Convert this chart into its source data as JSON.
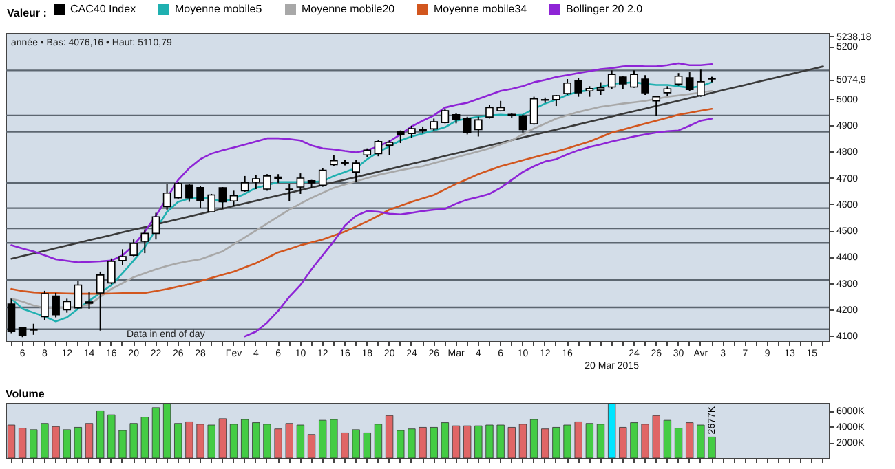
{
  "chart_data": [
    {
      "type": "candlestick",
      "legend_title": "Valeur :",
      "legend": "top",
      "marker": "none",
      "line_style": "solid",
      "grid": false,
      "annotations": [
        "année • Bas: 4076,16 • Haut: 5110,79",
        "Data in end of day"
      ],
      "categories": [
        null,
        "6",
        null,
        "8",
        null,
        "12",
        null,
        "14",
        null,
        "16",
        null,
        "20",
        null,
        "22",
        null,
        "26",
        null,
        "28",
        null,
        null,
        "Fev",
        null,
        "4",
        null,
        "6",
        null,
        "10",
        null,
        "12",
        null,
        "16",
        null,
        "18",
        null,
        "20",
        null,
        "24",
        null,
        "26",
        null,
        "Mar",
        null,
        "4",
        null,
        "6",
        null,
        "10",
        null,
        "12",
        null,
        "16",
        null,
        null,
        null,
        "20 Mar 2015",
        null,
        "24",
        null,
        "26",
        null,
        "30",
        null,
        "Avr",
        null,
        "3",
        null,
        "7",
        null,
        "9",
        null,
        "13",
        null,
        "15",
        null
      ],
      "ylim": [
        4080,
        5250
      ],
      "yticks": [
        4100,
        4200,
        4300,
        4400,
        4500,
        4600,
        4700,
        4800,
        4900,
        5000,
        {
          "value": 5074.9,
          "label": "5074,9"
        },
        5200,
        {
          "value": 5238.18,
          "label": "5238,18"
        }
      ],
      "ref_lines": [
        {
          "axis": "y",
          "value": 5108,
          "color": "#5c6670"
        },
        {
          "axis": "y",
          "value": 4937,
          "color": "#5c6670"
        },
        {
          "axis": "y",
          "value": 4875,
          "color": "#5c6670"
        },
        {
          "axis": "y",
          "value": 4681,
          "color": "#5c6670"
        },
        {
          "axis": "y",
          "value": 4585,
          "color": "#5c6670"
        },
        {
          "axis": "y",
          "value": 4508,
          "color": "#5c6670"
        },
        {
          "axis": "y",
          "value": 4453,
          "color": "#5c6670"
        },
        {
          "axis": "y",
          "value": 4313,
          "color": "#5c6670"
        },
        {
          "axis": "y",
          "value": 4208,
          "color": "#5c6670"
        },
        {
          "axis": "y",
          "value": 4125,
          "color": "#5c6670"
        }
      ],
      "series": [
        {
          "type": "candlestick",
          "name": "CAC40 Index",
          "color": "#000000",
          "ohlc": [
            [
              4221,
              4241,
              4110,
              4116
            ],
            [
              4131,
              4131,
              4095,
              4102
            ],
            [
              4122,
              4146,
              4104,
              4125
            ],
            [
              4173,
              4271,
              4161,
              4260
            ],
            [
              4251,
              4263,
              4170,
              4180
            ],
            [
              4199,
              4241,
              4188,
              4230
            ],
            [
              4206,
              4308,
              4203,
              4293
            ],
            [
              4229,
              4266,
              4203,
              4224
            ],
            [
              4263,
              4344,
              4120,
              4331
            ],
            [
              4301,
              4394,
              4296,
              4383
            ],
            [
              4386,
              4429,
              4368,
              4401
            ],
            [
              4406,
              4466,
              4402,
              4451
            ],
            [
              4459,
              4504,
              4414,
              4489
            ],
            [
              4489,
              4567,
              4466,
              4552
            ],
            [
              4591,
              4677,
              4579,
              4642
            ],
            [
              4624,
              4684,
              4621,
              4678
            ],
            [
              4672,
              4678,
              4609,
              4624
            ],
            [
              4663,
              4669,
              4586,
              4614
            ],
            [
              4571,
              4639,
              4571,
              4635
            ],
            [
              4662,
              4665,
              4582,
              4609
            ],
            [
              4612,
              4651,
              4594,
              4632
            ],
            [
              4651,
              4707,
              4647,
              4681
            ],
            [
              4684,
              4711,
              4657,
              4696
            ],
            [
              4657,
              4714,
              4651,
              4707
            ],
            [
              4703,
              4714,
              4681,
              4696
            ],
            [
              4654,
              4677,
              4612,
              4657
            ],
            [
              4665,
              4717,
              4639,
              4699
            ],
            [
              4689,
              4692,
              4662,
              4681
            ],
            [
              4672,
              4737,
              4666,
              4729
            ],
            [
              4750,
              4786,
              4744,
              4765
            ],
            [
              4759,
              4767,
              4747,
              4756
            ],
            [
              4722,
              4767,
              4684,
              4756
            ],
            [
              4787,
              4812,
              4778,
              4805
            ],
            [
              4792,
              4844,
              4782,
              4838
            ],
            [
              4824,
              4842,
              4787,
              4835
            ],
            [
              4875,
              4880,
              4832,
              4865
            ],
            [
              4868,
              4898,
              4853,
              4887
            ],
            [
              4880,
              4895,
              4868,
              4883
            ],
            [
              4886,
              4925,
              4880,
              4913
            ],
            [
              4910,
              4962,
              4907,
              4955
            ],
            [
              4940,
              4947,
              4907,
              4922
            ],
            [
              4925,
              4932,
              4865,
              4872
            ],
            [
              4883,
              4932,
              4857,
              4920
            ],
            [
              4931,
              4977,
              4925,
              4967
            ],
            [
              4955,
              4992,
              4952,
              4967
            ],
            [
              4941,
              4947,
              4928,
              4937
            ],
            [
              4935,
              4940,
              4872,
              4883
            ],
            [
              4905,
              5008,
              4902,
              5000
            ],
            [
              4995,
              5005,
              4985,
              4997
            ],
            [
              4997,
              5015,
              4973,
              5012
            ],
            [
              5020,
              5075,
              5015,
              5060
            ],
            [
              5068,
              5078,
              5008,
              5023
            ],
            [
              5030,
              5048,
              5008,
              5039
            ],
            [
              5033,
              5063,
              5015,
              5042
            ],
            [
              5045,
              5108,
              5038,
              5093
            ],
            [
              5083,
              5087,
              5038,
              5057
            ],
            [
              5045,
              5108,
              5042,
              5093
            ],
            [
              5075,
              5090,
              5015,
              5023
            ],
            [
              4992,
              5012,
              4935,
              5008
            ],
            [
              5023,
              5048,
              5012,
              5038
            ],
            [
              5056,
              5098,
              5050,
              5086
            ],
            [
              5080,
              5101,
              5030,
              5035
            ],
            [
              5012,
              5110.79,
              5008,
              5065
            ],
            [
              5078,
              5084,
              5063,
              5074.9
            ],
            null,
            null,
            null,
            null,
            null,
            null,
            null,
            null,
            null,
            null
          ]
        },
        {
          "type": "line",
          "name": "Moyenne mobile5",
          "color": "#1fb0b0",
          "values": [
            4241,
            4203,
            4188,
            4173,
            4155,
            4170,
            4203,
            4233,
            4263,
            4293,
            4338,
            4386,
            4436,
            4504,
            4571,
            4609,
            4621,
            4624,
            4621,
            4609,
            4621,
            4639,
            4662,
            4672,
            4684,
            4684,
            4684,
            4684,
            4687,
            4707,
            4722,
            4737,
            4771,
            4797,
            4820,
            4842,
            4857,
            4868,
            4880,
            4892,
            4917,
            4925,
            4932,
            4937,
            4940,
            4937,
            4940,
            4962,
            4982,
            4997,
            5015,
            5027,
            5033,
            5045,
            5057,
            5060,
            5063,
            5057,
            5053,
            5053,
            5048,
            5042,
            5048,
            5063,
            null,
            null,
            null,
            null,
            null,
            null,
            null,
            null,
            null,
            null
          ]
        },
        {
          "type": "line",
          "color": "#3a3a3a",
          "values": [
            4393,
            4403,
            4413,
            4423,
            4433,
            4443,
            4453,
            4463,
            4473,
            4483,
            4493,
            4503,
            4513,
            4523,
            4533,
            4543,
            4553,
            4563,
            4573,
            4583,
            4593,
            4603,
            4613,
            4623,
            4633,
            4643,
            4653,
            4663,
            4673,
            4683,
            4693,
            4703,
            4713,
            4723,
            4733,
            4743,
            4753,
            4763,
            4773,
            4783,
            4793,
            4803,
            4813,
            4823,
            4833,
            4843,
            4853,
            4863,
            4873,
            4883,
            4893,
            4903,
            4913,
            4923,
            4933,
            4943,
            4953,
            4963,
            4973,
            4983,
            4993,
            5003,
            5013,
            5023,
            5033,
            5043,
            5053,
            5063,
            5073,
            5083,
            5093,
            5103,
            5113,
            5123
          ]
        },
        {
          "type": "line",
          "name": "Moyenne mobile20",
          "color": "#a8a8a8",
          "values": [
            4241,
            4230,
            4215,
            4206,
            4206,
            4208,
            4212,
            4218,
            4248,
            4278,
            4300,
            4323,
            4338,
            4353,
            4365,
            4376,
            4384,
            4391,
            4406,
            4421,
            4448,
            4474,
            4500,
            4526,
            4553,
            4579,
            4602,
            4624,
            4643,
            4662,
            4675,
            4687,
            4699,
            4711,
            4720,
            4729,
            4737,
            4744,
            4756,
            4767,
            4778,
            4789,
            4800,
            4812,
            4827,
            4842,
            4865,
            4887,
            4906,
            4925,
            4938,
            4950,
            4960,
            4970,
            4976,
            4982,
            4987,
            4992,
            5000,
            5008,
            5013,
            5018,
            5024,
            5030,
            null,
            null,
            null,
            null,
            null,
            null,
            null,
            null,
            null,
            null
          ]
        },
        {
          "type": "line",
          "name": "Moyenne mobile34",
          "color": "#d2561e",
          "values": [
            4278,
            4270,
            4265,
            4263,
            4262,
            4261,
            4260,
            4260,
            4260,
            4261,
            4262,
            4262,
            4263,
            4270,
            4278,
            4287,
            4296,
            4308,
            4320,
            4332,
            4344,
            4360,
            4376,
            4396,
            4417,
            4430,
            4444,
            4455,
            4466,
            4481,
            4496,
            4515,
            4534,
            4556,
            4579,
            4594,
            4609,
            4622,
            4635,
            4656,
            4677,
            4695,
            4714,
            4729,
            4744,
            4755,
            4767,
            4778,
            4789,
            4800,
            4812,
            4825,
            4838,
            4855,
            4872,
            4883,
            4895,
            4906,
            4917,
            4928,
            4940,
            4947,
            4955,
            4962,
            null,
            null,
            null,
            null,
            null,
            null,
            null,
            null,
            null,
            null
          ]
        },
        {
          "type": "line",
          "name": "Bollinger 20 2.0",
          "color": "#8e24d6",
          "values": [
            4444,
            4432,
            4421,
            4406,
            4391,
            4385,
            4379,
            4381,
            4383,
            4386,
            4406,
            4444,
            4496,
            4556,
            4624,
            4692,
            4737,
            4771,
            4792,
            4805,
            4815,
            4826,
            4838,
            4850,
            4850,
            4847,
            4842,
            4823,
            4812,
            4808,
            4802,
            4797,
            4805,
            4820,
            4838,
            4865,
            4895,
            4917,
            4937,
            4967,
            4977,
            4985,
            5000,
            5015,
            5030,
            5038,
            5048,
            5063,
            5072,
            5083,
            5090,
            5098,
            5105,
            5113,
            5117,
            5123,
            5126,
            5123,
            5123,
            5128,
            5135,
            5128,
            5128,
            5132,
            null,
            null,
            null,
            null,
            null,
            null,
            null,
            null,
            null,
            null
          ]
        },
        {
          "type": "line",
          "color": "#8e24d6",
          "values": [
            null,
            null,
            null,
            null,
            null,
            null,
            null,
            null,
            null,
            null,
            null,
            null,
            null,
            null,
            null,
            null,
            null,
            null,
            null,
            null,
            null,
            4098,
            4116,
            4150,
            4195,
            4248,
            4293,
            4353,
            4406,
            4459,
            4519,
            4556,
            4574,
            4571,
            4564,
            4561,
            4567,
            4574,
            4579,
            4582,
            4602,
            4617,
            4627,
            4639,
            4662,
            4692,
            4722,
            4744,
            4762,
            4771,
            4789,
            4805,
            4817,
            4827,
            4838,
            4847,
            4857,
            4865,
            4872,
            4877,
            4880,
            4898,
            4917,
            4925,
            null,
            null,
            null,
            null,
            null,
            null,
            null,
            null,
            null,
            null
          ]
        }
      ]
    },
    {
      "type": "bar",
      "title": "Volume",
      "tick_labels": "y",
      "grid": false,
      "categories": [
        null,
        "6",
        null,
        "8",
        null,
        "12",
        null,
        "14",
        null,
        "16",
        null,
        "20",
        null,
        "22",
        null,
        "26",
        null,
        "28",
        null,
        null,
        "Fev",
        null,
        "4",
        null,
        "6",
        null,
        "10",
        null,
        "12",
        null,
        "16",
        null,
        "18",
        null,
        "20",
        null,
        "24",
        null,
        "26",
        null,
        "Mar",
        null,
        "4",
        null,
        "6",
        null,
        "10",
        null,
        "12",
        null,
        "16",
        null,
        null,
        null,
        "20 Mar 2015",
        null,
        "24",
        null,
        "26",
        null,
        "30",
        null,
        "Avr",
        null,
        "3",
        null,
        "7",
        null,
        "9",
        null,
        "13",
        null,
        "15",
        null
      ],
      "ylim": [
        0,
        7000
      ],
      "yticks": [
        {
          "value": 2000,
          "label": "2000K"
        },
        {
          "value": 4000,
          "label": "4000K"
        },
        {
          "value": 6000,
          "label": "6000K"
        }
      ],
      "values": [
        4200,
        3800,
        3600,
        4400,
        4000,
        3600,
        3900,
        4400,
        6000,
        5500,
        3500,
        4400,
        5200,
        6400,
        6900,
        4400,
        4600,
        4300,
        4200,
        5000,
        4300,
        4900,
        4500,
        4300,
        3700,
        4400,
        4200,
        3000,
        4800,
        4900,
        3200,
        3600,
        3200,
        4300,
        5400,
        3500,
        3700,
        3900,
        3900,
        4500,
        4100,
        4100,
        4100,
        4200,
        4200,
        3900,
        4300,
        4900,
        3700,
        3900,
        4200,
        4600,
        4400,
        4300,
        6900,
        3900,
        4500,
        4300,
        5400,
        4800,
        3800,
        4500,
        4200,
        2677,
        null,
        null,
        null,
        null,
        null,
        null,
        null,
        null,
        null,
        null
      ],
      "value_labels": [
        null,
        null,
        null,
        null,
        null,
        null,
        null,
        null,
        null,
        null,
        null,
        null,
        null,
        null,
        null,
        null,
        null,
        null,
        null,
        null,
        null,
        null,
        null,
        null,
        null,
        null,
        null,
        null,
        null,
        null,
        null,
        null,
        null,
        null,
        null,
        null,
        null,
        null,
        null,
        null,
        null,
        null,
        null,
        null,
        null,
        null,
        null,
        null,
        null,
        null,
        null,
        null,
        null,
        null,
        null,
        null,
        null,
        null,
        null,
        null,
        null,
        null,
        null,
        "2677K",
        null,
        null,
        null,
        null,
        null,
        null,
        null,
        null,
        null,
        null
      ],
      "colors": [
        "#e06666",
        "#e06666",
        "#44cc44",
        "#44cc44",
        "#e06666",
        "#44cc44",
        "#44cc44",
        "#e06666",
        "#44cc44",
        "#44cc44",
        "#44cc44",
        "#44cc44",
        "#44cc44",
        "#44cc44",
        "#44cc44",
        "#44cc44",
        "#e06666",
        "#e06666",
        "#44cc44",
        "#e06666",
        "#44cc44",
        "#44cc44",
        "#44cc44",
        "#44cc44",
        "#e06666",
        "#e06666",
        "#44cc44",
        "#e06666",
        "#44cc44",
        "#44cc44",
        "#e06666",
        "#44cc44",
        "#44cc44",
        "#44cc44",
        "#e06666",
        "#44cc44",
        "#44cc44",
        "#e06666",
        "#44cc44",
        "#44cc44",
        "#e06666",
        "#e06666",
        "#44cc44",
        "#44cc44",
        "#44cc44",
        "#e06666",
        "#e06666",
        "#44cc44",
        "#e06666",
        "#44cc44",
        "#44cc44",
        "#e06666",
        "#44cc44",
        "#44cc44",
        "#00e5ff",
        "#e06666",
        "#44cc44",
        "#e06666",
        "#e06666",
        "#44cc44",
        "#44cc44",
        "#e06666",
        "#44cc44",
        "#44cc44",
        null,
        null,
        null,
        null,
        null,
        null,
        null,
        null,
        null,
        null
      ]
    }
  ]
}
